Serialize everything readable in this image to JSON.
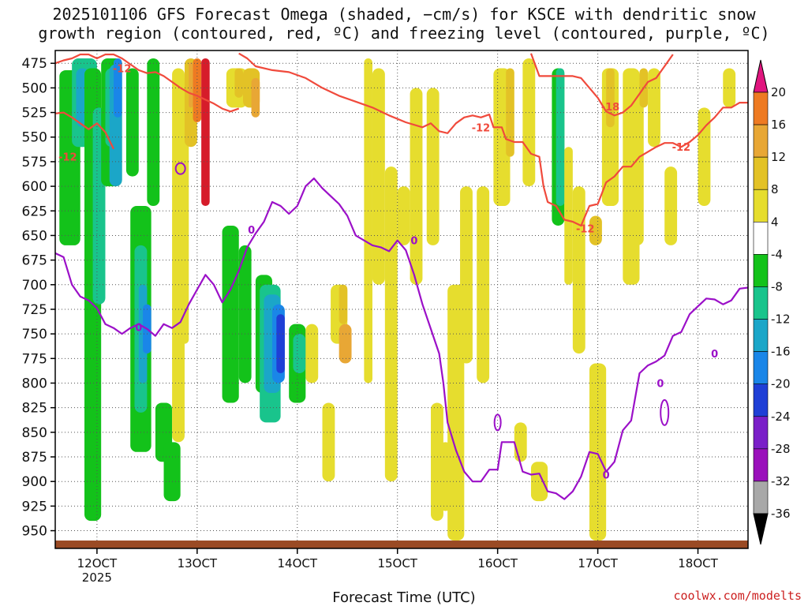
{
  "title_line1": "2025101106 GFS Forecast Omega (shaded, −cm/s) for KSCE with dendritic snow",
  "title_line2": "growth region (contoured, red, ºC) and freezing level (contoured, purple, ºC)",
  "xlabel": "Forecast Time (UTC)",
  "credit": "coolwx.com/modelts",
  "colors": {
    "dgz_contour": "#f04a3c",
    "freezing_contour": "#9b10c8",
    "terrain": "#9a4a24",
    "grid": "#555555"
  },
  "chart_data": {
    "type": "heatmap",
    "x_axis": {
      "ticks": [
        {
          "label": "12OCT",
          "sub": "2025",
          "hours": 6
        },
        {
          "label": "13OCT",
          "hours": 30
        },
        {
          "label": "14OCT",
          "hours": 54
        },
        {
          "label": "15OCT",
          "hours": 78
        },
        {
          "label": "16OCT",
          "hours": 102
        },
        {
          "label": "17OCT",
          "hours": 126
        },
        {
          "label": "18OCT",
          "hours": 150
        }
      ],
      "range_hours": [
        -4,
        162
      ]
    },
    "y_axis": {
      "unit": "hPa",
      "ticks": [
        475,
        500,
        525,
        550,
        575,
        600,
        625,
        650,
        675,
        700,
        725,
        750,
        775,
        800,
        825,
        850,
        875,
        900,
        925,
        950
      ],
      "range": [
        462,
        968
      ]
    },
    "colorbar": {
      "levels": [
        {
          "label": "20",
          "color": "#d61c2a"
        },
        {
          "label": "16",
          "color": "#ee7a22"
        },
        {
          "label": "12",
          "color": "#e8a735"
        },
        {
          "label": "8",
          "color": "#e3c226"
        },
        {
          "label": "4",
          "color": "#e6dd2e"
        },
        {
          "label": "-4",
          "color": "#ffffff"
        },
        {
          "label": "-8",
          "color": "#13c21a"
        },
        {
          "label": "-12",
          "color": "#19c48c"
        },
        {
          "label": "-16",
          "color": "#1ba6c8"
        },
        {
          "label": "-20",
          "color": "#1a86e8"
        },
        {
          "label": "-24",
          "color": "#1f3fd6"
        },
        {
          "label": "-28",
          "color": "#7a1fc8"
        },
        {
          "label": "-32",
          "color": "#9a10bb"
        },
        {
          "label": "-36",
          "color": "#a8a8a8"
        }
      ],
      "top_arrow_color": "#e0157e",
      "bottom_arrow_color": "#000000"
    },
    "dgz_labels": [
      {
        "text": "-12",
        "hours": 12,
        "p": 480
      },
      {
        "text": "-12",
        "hours": -1,
        "p": 570
      },
      {
        "text": "-18",
        "hours": 129,
        "p": 519
      },
      {
        "text": "-12",
        "hours": 98,
        "p": 540
      },
      {
        "text": "-12",
        "hours": 146,
        "p": 560
      },
      {
        "text": "-12",
        "hours": 123,
        "p": 643
      }
    ],
    "freezing_labels": [
      {
        "text": "0",
        "hours": 43,
        "p": 644
      },
      {
        "text": "0",
        "hours": 82,
        "p": 655
      },
      {
        "text": "0",
        "hours": 16,
        "p": 743
      },
      {
        "text": "0",
        "hours": 128,
        "p": 893
      },
      {
        "text": "0",
        "hours": 154,
        "p": 770
      },
      {
        "text": "0",
        "hours": 141,
        "p": 800
      }
    ],
    "freezing_level": [
      [
        -4,
        668
      ],
      [
        -2,
        672
      ],
      [
        0,
        700
      ],
      [
        2,
        712
      ],
      [
        4,
        716
      ],
      [
        6,
        724
      ],
      [
        8,
        740
      ],
      [
        10,
        744
      ],
      [
        12,
        750
      ],
      [
        14,
        744
      ],
      [
        16,
        740
      ],
      [
        18,
        745
      ],
      [
        20,
        752
      ],
      [
        22,
        740
      ],
      [
        24,
        744
      ],
      [
        26,
        738
      ],
      [
        28,
        720
      ],
      [
        30,
        705
      ],
      [
        32,
        690
      ],
      [
        34,
        700
      ],
      [
        36,
        718
      ],
      [
        38,
        705
      ],
      [
        40,
        686
      ],
      [
        42,
        662
      ],
      [
        44,
        648
      ],
      [
        46,
        636
      ],
      [
        48,
        616
      ],
      [
        50,
        620
      ],
      [
        52,
        628
      ],
      [
        54,
        620
      ],
      [
        56,
        600
      ],
      [
        58,
        592
      ],
      [
        60,
        602
      ],
      [
        62,
        610
      ],
      [
        64,
        618
      ],
      [
        66,
        630
      ],
      [
        68,
        650
      ],
      [
        70,
        655
      ],
      [
        72,
        660
      ],
      [
        74,
        662
      ],
      [
        76,
        666
      ],
      [
        78,
        655
      ],
      [
        80,
        665
      ],
      [
        82,
        690
      ],
      [
        84,
        720
      ],
      [
        86,
        745
      ],
      [
        88,
        770
      ],
      [
        89,
        800
      ],
      [
        90,
        840
      ],
      [
        92,
        868
      ],
      [
        94,
        890
      ],
      [
        96,
        900
      ],
      [
        98,
        900
      ],
      [
        100,
        888
      ],
      [
        102,
        888
      ],
      [
        103,
        860
      ],
      [
        106,
        860
      ],
      [
        108,
        890
      ],
      [
        110,
        893
      ],
      [
        112,
        892
      ],
      [
        114,
        910
      ],
      [
        116,
        912
      ],
      [
        118,
        918
      ],
      [
        120,
        910
      ],
      [
        122,
        895
      ],
      [
        124,
        870
      ],
      [
        126,
        872
      ],
      [
        128,
        890
      ],
      [
        130,
        880
      ],
      [
        132,
        848
      ],
      [
        134,
        838
      ],
      [
        136,
        790
      ],
      [
        138,
        782
      ],
      [
        140,
        778
      ],
      [
        142,
        772
      ],
      [
        144,
        752
      ],
      [
        146,
        748
      ],
      [
        148,
        730
      ],
      [
        150,
        722
      ],
      [
        152,
        714
      ],
      [
        154,
        715
      ],
      [
        156,
        720
      ],
      [
        158,
        716
      ],
      [
        160,
        704
      ],
      [
        162,
        703
      ]
    ],
    "dgz_m12_left": [
      [
        -4,
        475
      ],
      [
        -2,
        472
      ],
      [
        0,
        470
      ],
      [
        2,
        466
      ],
      [
        4,
        466
      ],
      [
        6,
        470
      ],
      [
        8,
        466
      ],
      [
        10,
        466
      ],
      [
        12,
        470
      ],
      [
        14,
        476
      ],
      [
        16,
        482
      ],
      [
        18,
        485
      ],
      [
        20,
        484
      ],
      [
        22,
        488
      ],
      [
        24,
        494
      ],
      [
        26,
        500
      ],
      [
        28,
        505
      ],
      [
        30,
        508
      ],
      [
        32,
        512
      ],
      [
        34,
        516
      ],
      [
        36,
        521
      ],
      [
        38,
        524
      ],
      [
        40,
        521
      ]
    ],
    "dgz_m12_low": [
      [
        -4,
        526
      ],
      [
        -2,
        525
      ],
      [
        0,
        530
      ],
      [
        2,
        536
      ],
      [
        4,
        542
      ],
      [
        6,
        536
      ],
      [
        8,
        545
      ],
      [
        10,
        562
      ]
    ],
    "dgz_right_upper": [
      [
        40,
        465
      ],
      [
        42,
        470
      ],
      [
        44,
        478
      ],
      [
        48,
        482
      ],
      [
        52,
        484
      ],
      [
        56,
        490
      ],
      [
        60,
        500
      ],
      [
        64,
        508
      ],
      [
        68,
        514
      ],
      [
        72,
        520
      ],
      [
        76,
        528
      ],
      [
        80,
        535
      ],
      [
        84,
        540
      ],
      [
        86,
        536
      ],
      [
        88,
        544
      ],
      [
        90,
        546
      ],
      [
        92,
        536
      ],
      [
        94,
        530
      ],
      [
        96,
        528
      ],
      [
        98,
        530
      ],
      [
        100,
        527
      ],
      [
        101,
        540
      ],
      [
        103,
        540
      ],
      [
        104,
        552
      ],
      [
        106,
        555
      ],
      [
        108,
        555
      ],
      [
        110,
        567
      ],
      [
        112,
        570
      ],
      [
        113,
        600
      ],
      [
        114,
        616
      ],
      [
        116,
        620
      ],
      [
        118,
        634
      ],
      [
        120,
        636
      ],
      [
        122,
        640
      ],
      [
        124,
        620
      ],
      [
        126,
        618
      ],
      [
        128,
        596
      ],
      [
        130,
        590
      ],
      [
        132,
        580
      ],
      [
        134,
        580
      ],
      [
        136,
        570
      ],
      [
        138,
        565
      ],
      [
        140,
        560
      ],
      [
        142,
        556
      ],
      [
        144,
        556
      ],
      [
        146,
        560
      ],
      [
        148,
        555
      ],
      [
        150,
        548
      ],
      [
        152,
        538
      ],
      [
        154,
        530
      ],
      [
        156,
        520
      ],
      [
        158,
        520
      ],
      [
        160,
        515
      ],
      [
        162,
        515
      ]
    ],
    "dgz_m18": [
      [
        110,
        465
      ],
      [
        112,
        488
      ],
      [
        114,
        488
      ],
      [
        116,
        488
      ],
      [
        118,
        488
      ],
      [
        120,
        488
      ],
      [
        122,
        490
      ],
      [
        124,
        500
      ],
      [
        126,
        510
      ],
      [
        128,
        524
      ],
      [
        130,
        528
      ],
      [
        132,
        525
      ],
      [
        134,
        518
      ],
      [
        136,
        506
      ],
      [
        138,
        494
      ],
      [
        140,
        490
      ],
      [
        142,
        478
      ],
      [
        144,
        466
      ]
    ],
    "terrain_p": 960
  }
}
